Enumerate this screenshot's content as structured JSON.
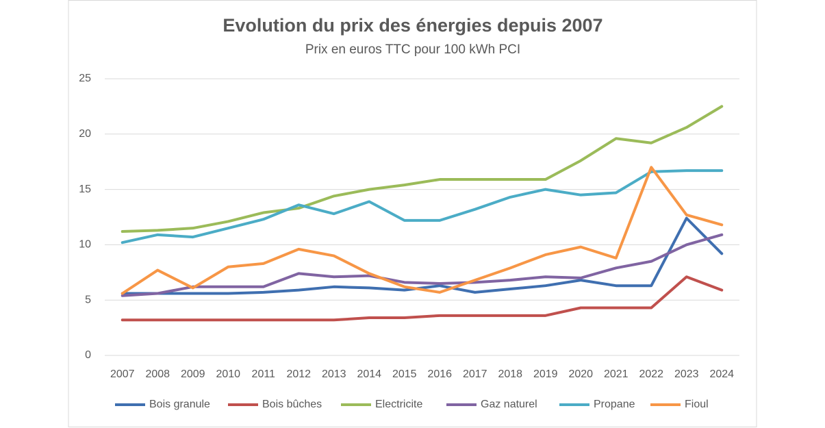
{
  "chart_data": {
    "type": "line",
    "title": "Evolution du prix des énergies depuis 2007",
    "subtitle": "Prix en euros TTC pour 100 kWh PCI",
    "categories": [
      "2007",
      "2008",
      "2009",
      "2010",
      "2011",
      "2012",
      "2013",
      "2014",
      "2015",
      "2016",
      "2017",
      "2018",
      "2019",
      "2020",
      "2021",
      "2022",
      "2023",
      "2024"
    ],
    "series": [
      {
        "name": "Bois granule",
        "color": "#3f6fb0",
        "values": [
          5.6,
          5.6,
          5.6,
          5.6,
          5.7,
          5.9,
          6.2,
          6.1,
          5.9,
          6.3,
          5.7,
          6.0,
          6.3,
          6.8,
          6.3,
          6.3,
          12.4,
          9.2
        ]
      },
      {
        "name": "Bois bûches",
        "color": "#c0504d",
        "values": [
          3.2,
          3.2,
          3.2,
          3.2,
          3.2,
          3.2,
          3.2,
          3.4,
          3.4,
          3.6,
          3.6,
          3.6,
          3.6,
          4.3,
          4.3,
          4.3,
          7.1,
          5.9
        ]
      },
      {
        "name": "Electricite",
        "color": "#9bbb59",
        "values": [
          11.2,
          11.3,
          11.5,
          12.1,
          12.9,
          13.3,
          14.4,
          15.0,
          15.4,
          15.9,
          15.9,
          15.9,
          15.9,
          17.6,
          19.6,
          19.2,
          20.6,
          22.5
        ]
      },
      {
        "name": "Gaz naturel",
        "color": "#8064a2",
        "values": [
          5.4,
          5.6,
          6.2,
          6.2,
          6.2,
          7.4,
          7.1,
          7.2,
          6.6,
          6.5,
          6.6,
          6.8,
          7.1,
          7.0,
          7.9,
          8.5,
          10.0,
          10.9
        ]
      },
      {
        "name": "Propane",
        "color": "#4bacc6",
        "values": [
          10.2,
          10.9,
          10.7,
          11.5,
          12.3,
          13.6,
          12.8,
          13.9,
          12.2,
          12.2,
          13.2,
          14.3,
          15.0,
          14.5,
          14.7,
          16.6,
          16.7,
          16.7
        ]
      },
      {
        "name": "Fioul",
        "color": "#f79646",
        "values": [
          5.6,
          7.7,
          6.1,
          8.0,
          8.3,
          9.6,
          9.0,
          7.4,
          6.2,
          5.7,
          6.8,
          7.9,
          9.1,
          9.8,
          8.8,
          17.0,
          12.7,
          11.8
        ]
      }
    ],
    "ylim": [
      0,
      25
    ],
    "yticks": [
      0,
      5,
      10,
      15,
      20,
      25
    ],
    "grid": true,
    "legend": "bottom"
  }
}
